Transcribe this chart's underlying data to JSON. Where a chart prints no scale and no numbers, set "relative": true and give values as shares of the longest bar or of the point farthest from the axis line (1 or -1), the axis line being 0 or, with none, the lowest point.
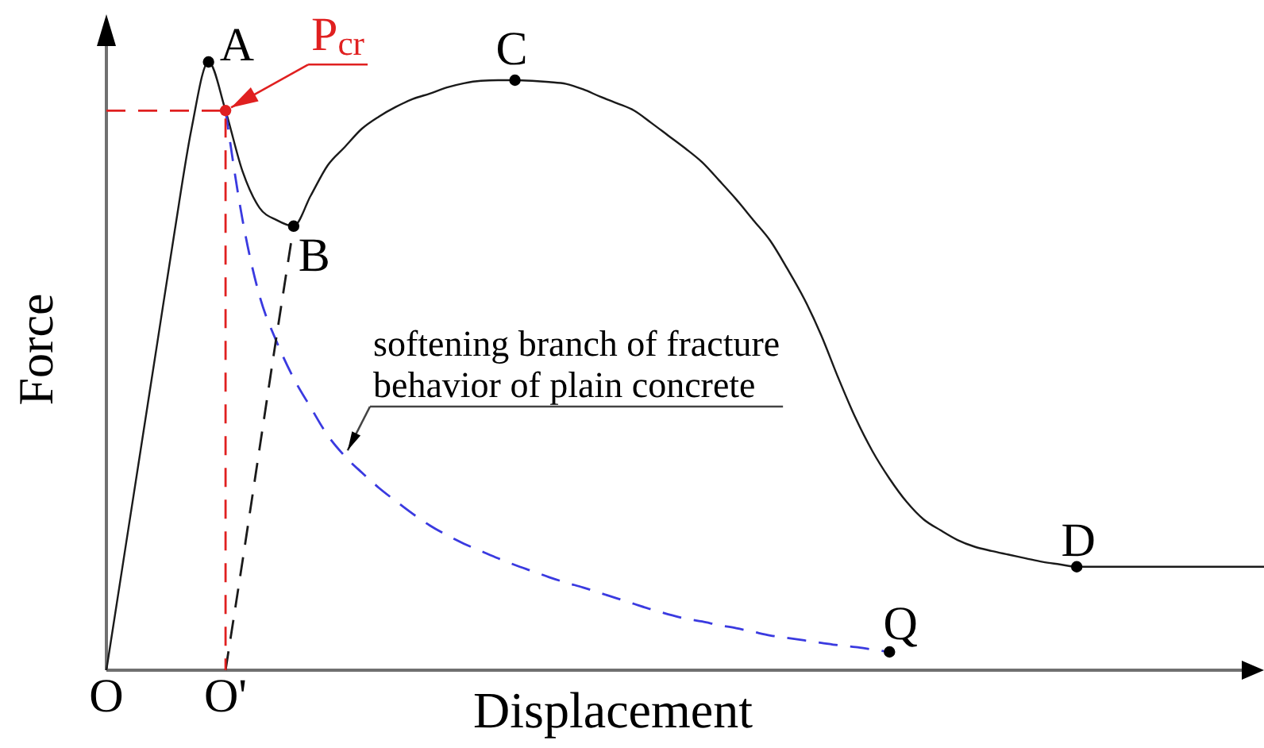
{
  "chart_data": {
    "type": "line",
    "xlabel": "Displacement",
    "ylabel": "Force",
    "relative": true,
    "categories": [
      "O",
      null,
      null,
      null,
      null,
      null,
      null,
      "O'",
      null,
      null,
      null,
      null,
      null,
      null,
      null,
      null,
      null,
      null,
      null,
      null,
      null,
      null,
      null,
      null,
      null,
      null,
      null,
      null,
      null,
      null,
      null,
      null,
      null,
      null,
      null,
      null,
      null,
      null,
      null,
      null,
      null,
      null,
      null,
      null,
      null,
      null,
      null,
      null,
      null,
      null,
      null,
      null,
      null,
      null,
      null,
      null,
      null,
      null,
      null,
      null,
      null,
      null,
      null,
      null,
      null,
      null,
      null,
      null,
      null
    ],
    "series": [
      {
        "color": "#1a1a1a",
        "line_style": "solid",
        "values": [
          0,
          0.18,
          0.36,
          0.54,
          0.72,
          0.89,
          1,
          0.92,
          0.82,
          0.76,
          0.74,
          0.73,
          0.78,
          0.83,
          0.86,
          0.89,
          0.91,
          0.926,
          0.939,
          0.948,
          0.958,
          0.965,
          0.969,
          0.97,
          0.97,
          0.969,
          0.967,
          0.964,
          0.955,
          0.943,
          0.932,
          0.92,
          0.9,
          0.879,
          0.858,
          0.835,
          0.805,
          0.774,
          0.74,
          0.706,
          0.66,
          0.61,
          0.55,
          0.48,
          0.415,
          0.36,
          0.315,
          0.277,
          0.248,
          0.23,
          0.214,
          0.203,
          0.196,
          0.19,
          0.184,
          0.178,
          0.174,
          0.17,
          0.17,
          0.17,
          0.17,
          0.17,
          0.17,
          0.17,
          0.17,
          0.17,
          0.17,
          0.17,
          0.17
        ]
      },
      {
        "color": "#3a3ae0",
        "line_style": "dashed",
        "values": [
          null,
          null,
          null,
          null,
          null,
          null,
          null,
          0.92,
          0.74,
          0.615,
          0.54,
          0.48,
          0.432,
          0.386,
          0.352,
          0.325,
          0.3,
          0.278,
          0.257,
          0.238,
          0.222,
          0.208,
          0.196,
          0.184,
          0.173,
          0.163,
          0.153,
          0.144,
          0.136,
          0.127,
          0.118,
          0.109,
          0.1,
          0.092,
          0.085,
          0.08,
          0.074,
          0.069,
          0.063,
          0.057,
          0.053,
          0.049,
          0.045,
          0.041,
          0.038,
          0.034,
          0.03,
          null,
          null,
          null,
          null,
          null,
          null,
          null,
          null,
          null,
          null,
          null,
          null,
          null,
          null,
          null,
          null,
          null,
          null,
          null,
          null,
          null,
          null
        ]
      },
      {
        "color": "#1a1a1a",
        "line_style": "dashed",
        "values": [
          null,
          null,
          null,
          null,
          null,
          null,
          null,
          0,
          0.18,
          0.365,
          0.55,
          0.73,
          null,
          null,
          null,
          null,
          null,
          null,
          null,
          null,
          null,
          null,
          null,
          null,
          null,
          null,
          null,
          null,
          null,
          null,
          null,
          null,
          null,
          null,
          null,
          null,
          null,
          null,
          null,
          null,
          null,
          null,
          null,
          null,
          null,
          null,
          null,
          null,
          null,
          null,
          null,
          null,
          null,
          null,
          null,
          null,
          null,
          null,
          null,
          null,
          null,
          null,
          null,
          null,
          null,
          null,
          null,
          null,
          null
        ]
      },
      {
        "color": "#e02020",
        "line_style": "dashed",
        "x": [
          "O",
          "O'",
          "O'"
        ],
        "values": [
          0.92,
          0.92,
          0
        ]
      },
      {
        "type": "scatter",
        "marker": "circle",
        "color": "#000000",
        "values": [
          null,
          null,
          null,
          null,
          null,
          null,
          1,
          null,
          null,
          null,
          null,
          0.73,
          null,
          null,
          null,
          null,
          null,
          null,
          null,
          null,
          null,
          null,
          null,
          null,
          0.97,
          null,
          null,
          null,
          null,
          null,
          null,
          null,
          null,
          null,
          null,
          null,
          null,
          null,
          null,
          null,
          null,
          null,
          null,
          null,
          null,
          null,
          0.03,
          null,
          null,
          null,
          null,
          null,
          null,
          null,
          null,
          null,
          null,
          0.17,
          null,
          null,
          null,
          null,
          null,
          null,
          null,
          null,
          null,
          null,
          null
        ]
      },
      {
        "type": "scatter",
        "marker": "circle",
        "color": "#e02020",
        "values": [
          null,
          null,
          null,
          null,
          null,
          null,
          null,
          0.92,
          null,
          null,
          null,
          null,
          null,
          null,
          null,
          null,
          null,
          null,
          null,
          null,
          null,
          null,
          null,
          null,
          null,
          null,
          null,
          null,
          null,
          null,
          null,
          null,
          null,
          null,
          null,
          null,
          null,
          null,
          null,
          null,
          null,
          null,
          null,
          null,
          null,
          null,
          null,
          null,
          null,
          null,
          null,
          null,
          null,
          null,
          null,
          null,
          null,
          null,
          null,
          null,
          null,
          null,
          null,
          null,
          null,
          null,
          null,
          null,
          null
        ]
      }
    ],
    "annotations": [
      "A",
      {
        "text": "P$_{cr}$",
        "x": "O'",
        "y": 0.92
      },
      "B",
      "C",
      "D",
      "Q",
      "softening branch of fracture behavior of plain concrete"
    ]
  }
}
